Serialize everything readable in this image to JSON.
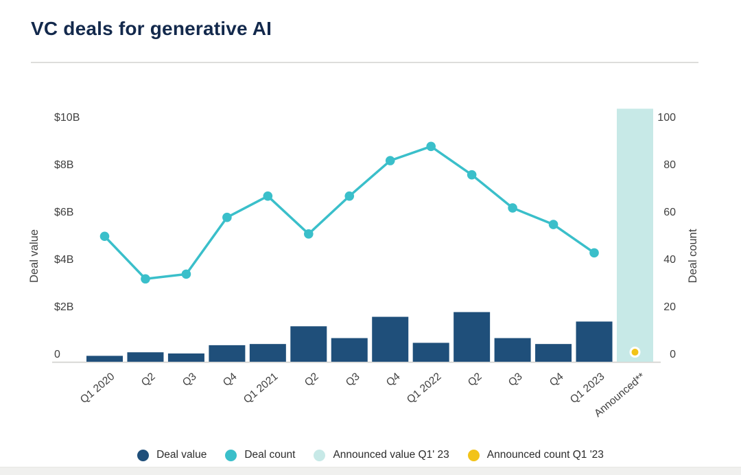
{
  "header": {
    "title": "VC deals for generative AI"
  },
  "chart_data": {
    "type": "combo-bar-line",
    "title": "VC deals for generative AI",
    "categories": [
      "Q1 2020",
      "Q2",
      "Q3",
      "Q4",
      "Q1 2021",
      "Q2",
      "Q3",
      "Q4",
      "Q1 2022",
      "Q2",
      "Q3",
      "Q4",
      "Q1 2023",
      "Announced**"
    ],
    "left_axis": {
      "title": "Deal value",
      "tick_labels_top_to_bottom": [
        "$10B",
        "$8B",
        "$6B",
        "$4B",
        "$2B",
        "0"
      ],
      "min": 0,
      "max_billions": 10,
      "grid": "off"
    },
    "right_axis": {
      "title": "Deal count",
      "tick_labels_top_to_bottom": [
        "100",
        "80",
        "60",
        "40",
        "20",
        "0"
      ],
      "min": 0,
      "max": 100,
      "grid": "off"
    },
    "series": [
      {
        "name": "Deal value",
        "type": "bar",
        "axis": "left",
        "color": "#1f4f7a",
        "values_billions": [
          0.25,
          0.4,
          0.35,
          0.7,
          0.75,
          1.5,
          1.0,
          1.9,
          0.8,
          2.1,
          1.0,
          0.75,
          1.7,
          null
        ]
      },
      {
        "name": "Deal count",
        "type": "line",
        "axis": "right",
        "color": "#3abfca",
        "values": [
          50,
          32,
          34,
          58,
          67,
          51,
          67,
          82,
          88,
          76,
          62,
          55,
          43,
          null
        ]
      },
      {
        "name": "Announced value Q1' 23",
        "type": "bar",
        "axis": "left",
        "color": "#c7e9e7",
        "values_billions": [
          null,
          null,
          null,
          null,
          null,
          null,
          null,
          null,
          null,
          null,
          null,
          null,
          null,
          10.7
        ]
      },
      {
        "name": "Announced count Q1 '23",
        "type": "point",
        "axis": "right",
        "color": "#f2c318",
        "point_ring_color": "#ffffff",
        "values": [
          null,
          null,
          null,
          null,
          null,
          null,
          null,
          null,
          null,
          null,
          null,
          null,
          null,
          1
        ]
      }
    ],
    "legend": [
      {
        "label": "Deal value",
        "color": "#1f4f7a"
      },
      {
        "label": "Deal count",
        "color": "#3abfca"
      },
      {
        "label": "Announced value Q1' 23",
        "color": "#c7e9e7"
      },
      {
        "label": "Announced count Q1 '23",
        "color": "#f2c318"
      }
    ],
    "legend_position": "bottom-center"
  }
}
